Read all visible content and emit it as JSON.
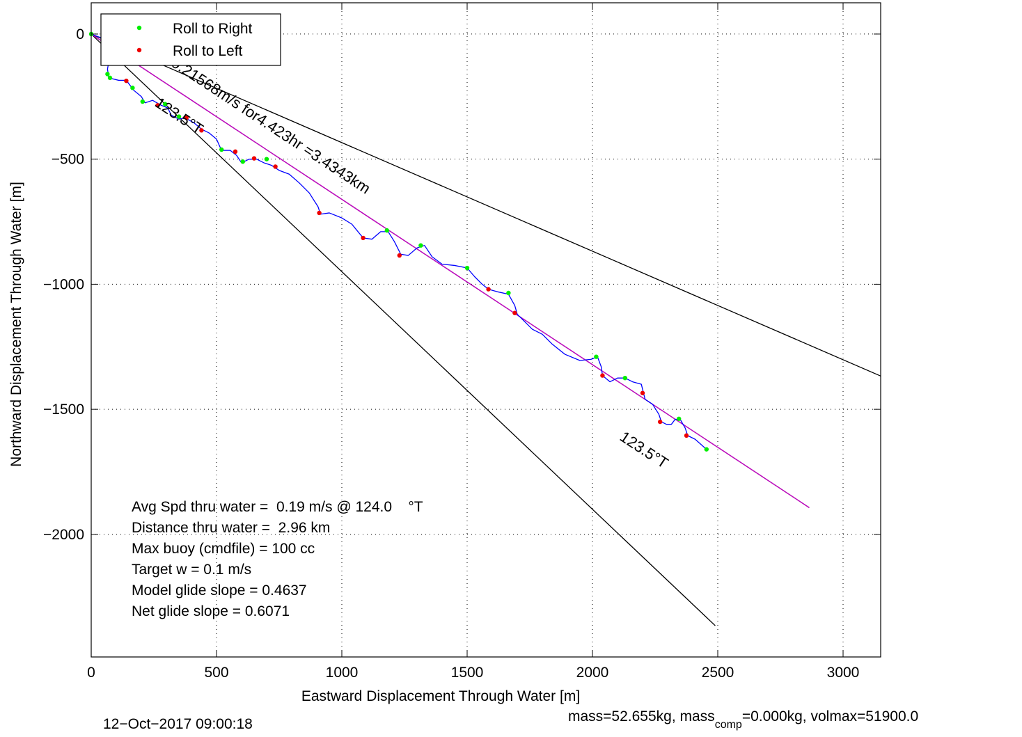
{
  "chart_data": {
    "type": "line",
    "xlabel": "Eastward Displacement Through Water [m]",
    "ylabel": "Northward Displacement Through Water [m]",
    "xlim": [
      0,
      3150
    ],
    "ylim": [
      -2490,
      125
    ],
    "xticks": [
      0,
      500,
      1000,
      1500,
      2000,
      2500,
      3000
    ],
    "yticks": [
      0,
      -500,
      -1000,
      -1500,
      -2000
    ],
    "xtick_labels": [
      "0",
      "500",
      "1000",
      "1500",
      "2000",
      "2500",
      "3000"
    ],
    "ytick_labels": [
      "0",
      "−500",
      "−1000",
      "−1500",
      "−2000"
    ],
    "grid": true,
    "legend_position": "top-left",
    "legend": [
      {
        "label": "Roll to Right",
        "color": "#00ee00"
      },
      {
        "label": "Roll to Left",
        "color": "#ee0000"
      }
    ],
    "reference_lines": [
      {
        "color": "#000000",
        "points": [
          [
            0,
            0
          ],
          [
            3150,
            -1367
          ]
        ]
      },
      {
        "color": "#000000",
        "points": [
          [
            0,
            0
          ],
          [
            2490,
            -2365
          ]
        ]
      },
      {
        "color": "#000000",
        "points": [
          [
            0,
            0
          ],
          [
            2865,
            -1893
          ]
        ]
      },
      {
        "color": "#cc00cc",
        "points": [
          [
            0,
            0
          ],
          [
            2865,
            -1893
          ]
        ]
      }
    ],
    "track": {
      "color": "#0000ff",
      "points": [
        [
          0,
          0
        ],
        [
          40,
          -15
        ],
        [
          70,
          -35
        ],
        [
          75,
          -85
        ],
        [
          65,
          -140
        ],
        [
          70,
          -175
        ],
        [
          110,
          -185
        ],
        [
          140,
          -185
        ],
        [
          170,
          -225
        ],
        [
          200,
          -250
        ],
        [
          215,
          -275
        ],
        [
          245,
          -265
        ],
        [
          280,
          -285
        ],
        [
          305,
          -295
        ],
        [
          320,
          -325
        ],
        [
          350,
          -340
        ],
        [
          375,
          -335
        ],
        [
          410,
          -355
        ],
        [
          440,
          -380
        ],
        [
          470,
          -395
        ],
        [
          500,
          -420
        ],
        [
          520,
          -465
        ],
        [
          555,
          -465
        ],
        [
          580,
          -485
        ],
        [
          600,
          -515
        ],
        [
          630,
          -500
        ],
        [
          660,
          -500
        ],
        [
          690,
          -515
        ],
        [
          720,
          -525
        ],
        [
          750,
          -545
        ],
        [
          790,
          -560
        ],
        [
          830,
          -595
        ],
        [
          870,
          -635
        ],
        [
          905,
          -690
        ],
        [
          915,
          -720
        ],
        [
          950,
          -715
        ],
        [
          1000,
          -735
        ],
        [
          1040,
          -760
        ],
        [
          1085,
          -815
        ],
        [
          1120,
          -820
        ],
        [
          1155,
          -790
        ],
        [
          1185,
          -790
        ],
        [
          1210,
          -830
        ],
        [
          1235,
          -880
        ],
        [
          1265,
          -885
        ],
        [
          1300,
          -855
        ],
        [
          1330,
          -845
        ],
        [
          1360,
          -890
        ],
        [
          1400,
          -920
        ],
        [
          1450,
          -925
        ],
        [
          1500,
          -935
        ],
        [
          1530,
          -970
        ],
        [
          1560,
          -1000
        ],
        [
          1585,
          -1020
        ],
        [
          1620,
          -1030
        ],
        [
          1665,
          -1040
        ],
        [
          1690,
          -1085
        ],
        [
          1700,
          -1120
        ],
        [
          1730,
          -1150
        ],
        [
          1760,
          -1180
        ],
        [
          1800,
          -1200
        ],
        [
          1840,
          -1240
        ],
        [
          1890,
          -1280
        ],
        [
          1950,
          -1305
        ],
        [
          1995,
          -1300
        ],
        [
          2020,
          -1290
        ],
        [
          2035,
          -1330
        ],
        [
          2040,
          -1365
        ],
        [
          2070,
          -1390
        ],
        [
          2100,
          -1375
        ],
        [
          2130,
          -1375
        ],
        [
          2160,
          -1390
        ],
        [
          2195,
          -1400
        ],
        [
          2205,
          -1440
        ],
        [
          2210,
          -1460
        ],
        [
          2240,
          -1480
        ],
        [
          2265,
          -1520
        ],
        [
          2275,
          -1550
        ],
        [
          2295,
          -1560
        ],
        [
          2315,
          -1560
        ],
        [
          2330,
          -1540
        ],
        [
          2350,
          -1540
        ],
        [
          2370,
          -1575
        ],
        [
          2380,
          -1605
        ],
        [
          2410,
          -1620
        ],
        [
          2455,
          -1660
        ]
      ]
    },
    "roll_right_points": [
      [
        0,
        0
      ],
      [
        70,
        -40
      ],
      [
        65,
        -160
      ],
      [
        75,
        -175
      ],
      [
        165,
        -215
      ],
      [
        205,
        -270
      ],
      [
        295,
        -280
      ],
      [
        350,
        -330
      ],
      [
        520,
        -462
      ],
      [
        605,
        -510
      ],
      [
        700,
        -500
      ],
      [
        1180,
        -785
      ],
      [
        1315,
        -845
      ],
      [
        1500,
        -935
      ],
      [
        1665,
        -1035
      ],
      [
        2015,
        -1290
      ],
      [
        2130,
        -1375
      ],
      [
        2345,
        -1538
      ],
      [
        2455,
        -1660
      ]
    ],
    "roll_left_points": [
      [
        50,
        -20
      ],
      [
        140,
        -187
      ],
      [
        265,
        -285
      ],
      [
        380,
        -335
      ],
      [
        440,
        -385
      ],
      [
        575,
        -470
      ],
      [
        650,
        -497
      ],
      [
        735,
        -530
      ],
      [
        910,
        -715
      ],
      [
        1085,
        -815
      ],
      [
        1230,
        -885
      ],
      [
        1585,
        -1020
      ],
      [
        1690,
        -1115
      ],
      [
        2040,
        -1365
      ],
      [
        2200,
        -1435
      ],
      [
        2270,
        -1550
      ],
      [
        2375,
        -1605
      ]
    ],
    "annotations": [
      {
        "text": "0.21568m/s for4.423hr =3.4343km",
        "x": 315,
        "y": -125
      },
      {
        "text": "123.5°T",
        "x": 250,
        "y": -285
      },
      {
        "text": "123.5°T",
        "x": 2105,
        "y": -1620
      }
    ],
    "stats_lines": [
      "Avg Spd thru water =  0.19 m/s @ 124.0    °T",
      "Distance thru water =  2.96 km",
      "Max buoy (cmdfile) = 100 cc",
      "Target w = 0.1 m/s",
      "Model glide slope = 0.4637",
      "Net glide slope = 0.6071"
    ]
  },
  "footer": {
    "timestamp": "12−Oct−2017 09:00:18",
    "mass_text_before": "mass=52.655kg, mass",
    "mass_subscript": "comp",
    "mass_text_after": "=0.000kg, volmax=51900.0"
  }
}
